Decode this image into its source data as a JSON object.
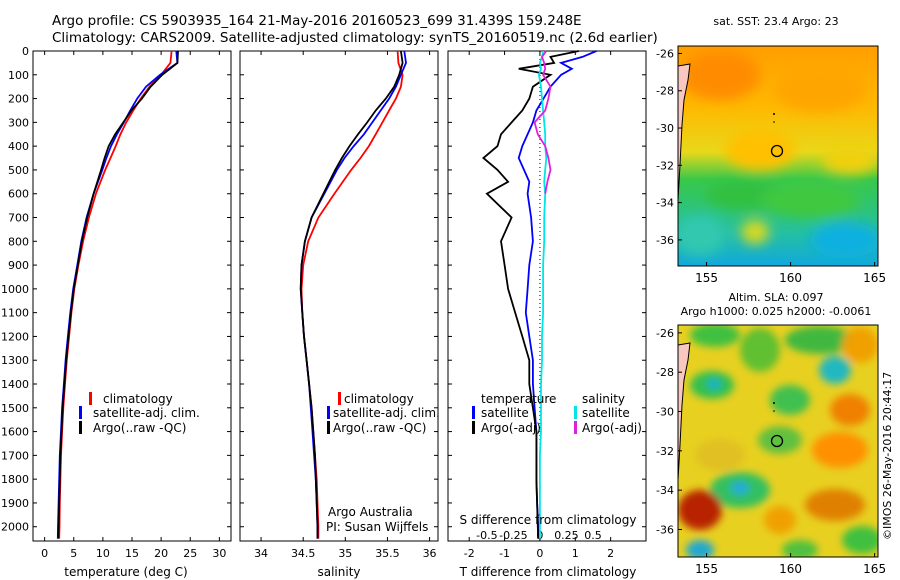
{
  "header": {
    "line1": "Argo profile: CS 5903935_164 21-May-2016 20160523_699 31.439S 159.248E",
    "line2": "Climatology: CARS2009. Satellite-adjusted climatology: synTS_20160519.nc (2.6d earlier)"
  },
  "side_stamp": "©IMOS 26-May-2016 20:44:17",
  "colors": {
    "climatology": "#ff0000",
    "satellite": "#0000ff",
    "argo": "#000000",
    "sat_salinity": "#00e5e5",
    "argo_salinity": "#e020e0"
  },
  "depth_ticks": [
    "0",
    "100",
    "200",
    "300",
    "400",
    "500",
    "600",
    "700",
    "800",
    "900",
    "1000",
    "1100",
    "1200",
    "1300",
    "1400",
    "1500",
    "1600",
    "1700",
    "1800",
    "1900",
    "2000"
  ],
  "chart_data": [
    {
      "type": "line",
      "id": "temperature",
      "xlabel": "temperature (deg C)",
      "ylabel": "depth",
      "xlim": [
        -2,
        32
      ],
      "ylim": [
        2060,
        0
      ],
      "xticks": [
        0,
        5,
        10,
        15,
        20,
        25,
        30
      ],
      "xtick_labels": [
        "0",
        "5",
        "10",
        "15",
        "20",
        "25",
        "30"
      ],
      "depth": [
        0,
        50,
        100,
        150,
        200,
        250,
        300,
        350,
        400,
        450,
        500,
        600,
        700,
        800,
        900,
        1000,
        1100,
        1200,
        1300,
        1400,
        1500,
        1600,
        1700,
        1800,
        1900,
        2000,
        2050
      ],
      "series": [
        {
          "name": "climatology",
          "color": "#ff0000",
          "values": [
            21.8,
            21.6,
            20.0,
            18.0,
            16.5,
            15.2,
            14.0,
            13.0,
            12.2,
            11.3,
            10.4,
            8.8,
            7.6,
            6.6,
            5.8,
            5.1,
            4.6,
            4.2,
            3.8,
            3.5,
            3.2,
            3.0,
            2.8,
            2.7,
            2.6,
            2.55,
            2.5
          ]
        },
        {
          "name": "satellite-adj. clim.",
          "color": "#0000ff",
          "values": [
            22.6,
            22.8,
            19.8,
            17.4,
            15.9,
            14.7,
            13.6,
            12.4,
            11.4,
            10.6,
            9.9,
            8.4,
            7.2,
            6.3,
            5.6,
            4.9,
            4.4,
            4.0,
            3.6,
            3.3,
            3.0,
            2.8,
            2.6,
            2.5,
            2.4,
            2.3,
            2.25
          ]
        },
        {
          "name": "Argo(..raw -QC)",
          "color": "#000000",
          "values": [
            22.9,
            22.8,
            20.2,
            18.2,
            16.7,
            14.9,
            13.5,
            12.1,
            11.0,
            10.3,
            9.7,
            8.4,
            7.3,
            6.4,
            5.7,
            5.0,
            4.5,
            4.1,
            3.7,
            3.4,
            3.1,
            2.9,
            2.7,
            2.6,
            2.5,
            2.4,
            2.35
          ]
        }
      ],
      "legend": [
        "climatology",
        "satellite-adj. clim.",
        "Argo(..raw -QC)"
      ]
    },
    {
      "type": "line",
      "id": "salinity",
      "xlabel": "salinity",
      "ylabel": "depth",
      "xlim": [
        33.75,
        36.1
      ],
      "ylim": [
        2060,
        0
      ],
      "xticks": [
        34,
        34.5,
        35,
        35.5,
        36
      ],
      "xtick_labels": [
        "34",
        "34.5",
        "35",
        "35.5",
        "36"
      ],
      "depth": [
        0,
        50,
        100,
        150,
        200,
        250,
        300,
        350,
        400,
        450,
        500,
        600,
        700,
        800,
        900,
        1000,
        1100,
        1200,
        1300,
        1400,
        1500,
        1600,
        1700,
        1800,
        1900,
        2000,
        2050
      ],
      "series": [
        {
          "name": "climatology",
          "color": "#ff0000",
          "values": [
            35.62,
            35.63,
            35.68,
            35.66,
            35.6,
            35.52,
            35.44,
            35.36,
            35.28,
            35.18,
            35.07,
            34.87,
            34.68,
            34.56,
            34.5,
            34.48,
            34.49,
            34.51,
            34.54,
            34.57,
            34.6,
            34.62,
            34.64,
            34.66,
            34.67,
            34.68,
            34.68
          ]
        },
        {
          "name": "satellite-adj. clim.",
          "color": "#0000ff",
          "values": [
            35.7,
            35.72,
            35.66,
            35.6,
            35.52,
            35.42,
            35.32,
            35.22,
            35.1,
            34.99,
            34.9,
            34.75,
            34.6,
            34.52,
            34.48,
            34.47,
            34.49,
            34.51,
            34.54,
            34.57,
            34.59,
            34.61,
            34.63,
            34.65,
            34.66,
            34.67,
            34.67
          ]
        },
        {
          "name": "Argo(..raw -QC)",
          "color": "#000000",
          "values": [
            35.66,
            35.68,
            35.64,
            35.58,
            35.48,
            35.36,
            35.26,
            35.15,
            35.05,
            34.96,
            34.88,
            34.74,
            34.6,
            34.52,
            34.48,
            34.47,
            34.49,
            34.51,
            34.54,
            34.57,
            34.6,
            34.62,
            34.64,
            34.65,
            34.66,
            34.67,
            34.67
          ]
        }
      ],
      "legend": [
        "climatology",
        "satellite-adj. clim.",
        "Argo(..raw -QC)"
      ],
      "annotation": [
        "Argo Australia",
        "PI: Susan Wijffels"
      ]
    },
    {
      "type": "line",
      "id": "differences",
      "xlabel": "T difference from climatology",
      "xlabel_top": "S difference from climatology",
      "xlim": [
        -2.6,
        3.0
      ],
      "ylim": [
        2060,
        0
      ],
      "xticks": [
        -2,
        -1,
        0,
        1,
        2
      ],
      "xtick_labels": [
        "-2",
        "-1",
        "0",
        "1",
        "2"
      ],
      "s_ticks": [
        -0.5,
        -0.25,
        0,
        0.25,
        0.5
      ],
      "s_tick_labels": [
        "-0.5",
        "-0.25",
        "0",
        "0.25",
        "0.5"
      ],
      "s_scale_T_per_S": 3.0,
      "depth": [
        0,
        25,
        50,
        75,
        100,
        150,
        200,
        250,
        300,
        350,
        400,
        450,
        500,
        550,
        600,
        700,
        800,
        900,
        1000,
        1100,
        1200,
        1300,
        1400,
        1500,
        1600,
        1700,
        1800,
        1900,
        2000,
        2050
      ],
      "series": [
        {
          "name": "temperature satellite",
          "color": "#0000ff",
          "values": [
            1.6,
            1.2,
            0.6,
            0.9,
            0.6,
            0.3,
            0.1,
            -0.1,
            -0.2,
            -0.35,
            -0.5,
            -0.6,
            -0.45,
            -0.3,
            -0.35,
            -0.25,
            -0.2,
            -0.3,
            -0.35,
            -0.4,
            -0.3,
            -0.2,
            -0.2,
            -0.15,
            -0.1,
            -0.1,
            -0.1,
            -0.08,
            -0.05,
            -0.05
          ]
        },
        {
          "name": "temperature Argo(-adj)",
          "color": "#000000",
          "values": [
            1.1,
            0.3,
            0.4,
            -0.6,
            0.3,
            -0.2,
            -0.3,
            -0.5,
            -0.8,
            -1.1,
            -1.2,
            -1.6,
            -1.2,
            -0.9,
            -1.5,
            -0.8,
            -1.1,
            -1.0,
            -0.9,
            -0.7,
            -0.5,
            -0.3,
            -0.3,
            -0.2,
            -0.1,
            -0.1,
            -0.1,
            -0.08,
            -0.06,
            -0.05
          ]
        },
        {
          "name": "salinity satellite",
          "color": "#00e5e5",
          "values": [
            0.03,
            0.02,
            0.0,
            0.01,
            -0.01,
            0.01,
            0.02,
            0.03,
            0.04,
            0.05,
            0.05,
            0.06,
            0.05,
            0.04,
            0.05,
            0.04,
            0.04,
            0.03,
            0.03,
            0.03,
            0.02,
            0.02,
            0.01,
            0.01,
            0.01,
            0.0,
            0.0,
            0.0,
            0.0,
            0.0
          ]
        },
        {
          "name": "salinity Argo(-adj)",
          "color": "#e020e0",
          "values": [
            0.06,
            0.02,
            0.04,
            0.05,
            0.03,
            0.1,
            0.08,
            0.05,
            -0.05,
            -0.02,
            0.05,
            0.08,
            0.1,
            0.07,
            0.05,
            null,
            null,
            null,
            null,
            null,
            null,
            null,
            null,
            null,
            null,
            null,
            null,
            null,
            null,
            null
          ]
        }
      ],
      "legend_headers": [
        "temperature",
        "salinity"
      ],
      "legend": [
        "satellite",
        "Argo(-adj)",
        "satellite",
        "Argo(-adj)"
      ]
    },
    {
      "type": "heatmap",
      "id": "sst_map",
      "title": "sat. SST: 23.4  Argo: 23",
      "xlim": [
        153.3,
        165.2
      ],
      "ylim": [
        -37.4,
        -25.6
      ],
      "xticks": [
        155,
        160,
        165
      ],
      "xtick_labels": [
        "155",
        "160",
        "165"
      ],
      "yticks": [
        -26,
        -28,
        -30,
        -32,
        -34,
        -36
      ],
      "ytick_labels": [
        "-26",
        "-28",
        "-30",
        "-32",
        "-34",
        "-36"
      ],
      "float_position": [
        159.25,
        -31.44
      ],
      "colormap": "jet"
    },
    {
      "type": "heatmap",
      "id": "sla_map",
      "title": "Altim. SLA: 0.097",
      "subtitle": "Argo h1000: 0.025 h2000: -0.0061",
      "xlim": [
        153.3,
        165.2
      ],
      "ylim": [
        -37.4,
        -25.6
      ],
      "xticks": [
        155,
        160,
        165
      ],
      "xtick_labels": [
        "155",
        "160",
        "165"
      ],
      "yticks": [
        -26,
        -28,
        -30,
        -32,
        -34,
        -36
      ],
      "ytick_labels": [
        "-26",
        "-28",
        "-30",
        "-32",
        "-34",
        "-36"
      ],
      "float_position": [
        159.25,
        -31.44
      ],
      "colormap": "jet"
    }
  ]
}
